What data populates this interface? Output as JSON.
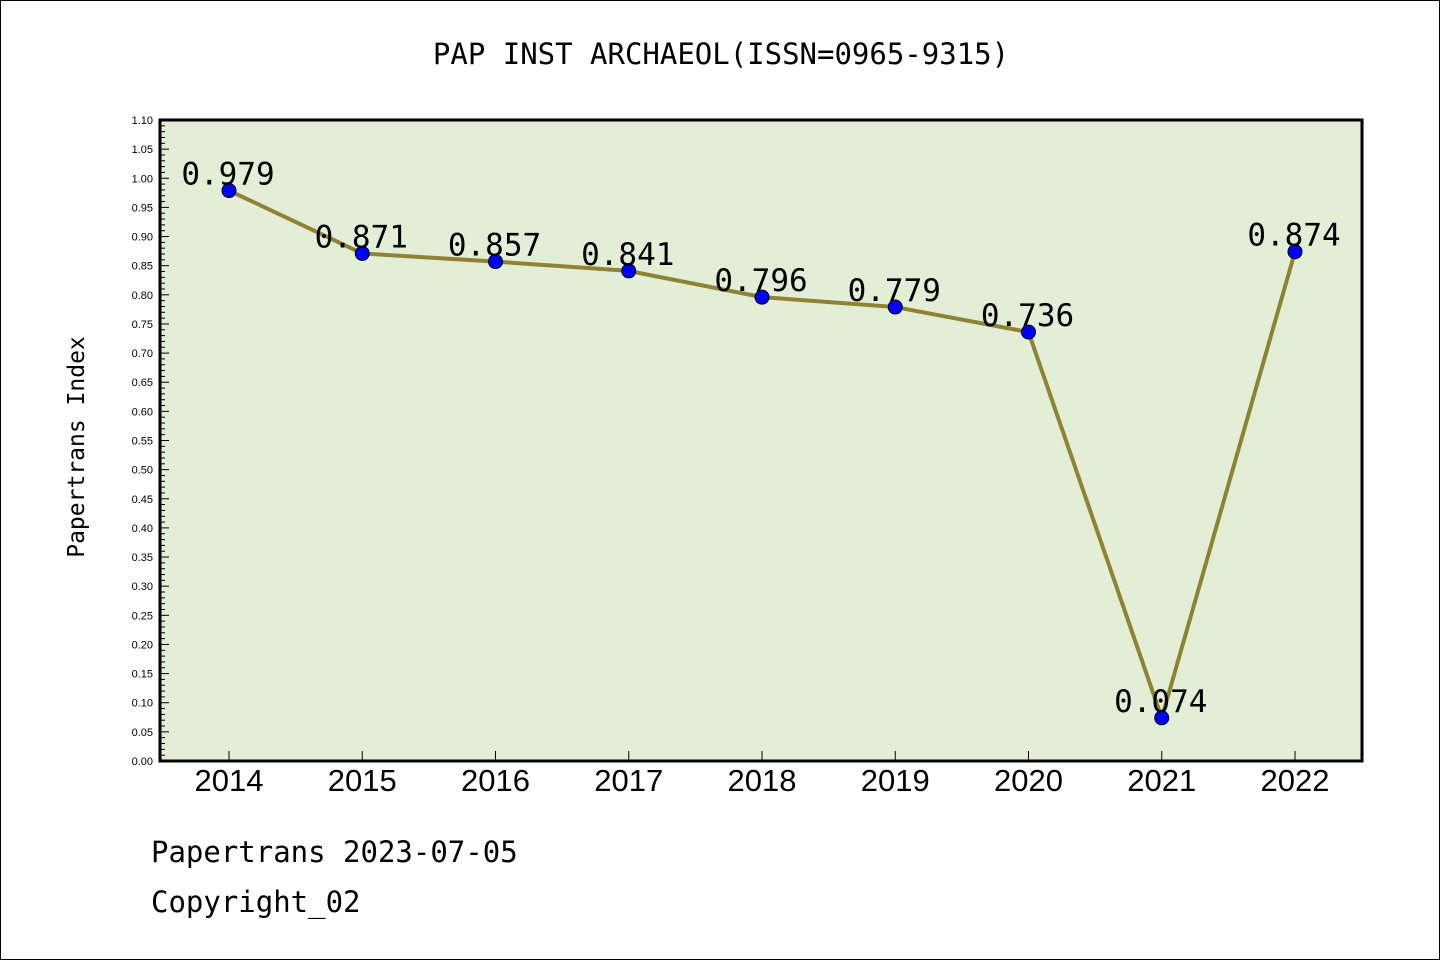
{
  "chart_data": {
    "type": "line",
    "title": "PAP INST ARCHAEOL(ISSN=0965-9315)",
    "ylabel": "Papertrans Index",
    "xlabel": "",
    "categories": [
      "2014",
      "2015",
      "2016",
      "2017",
      "2018",
      "2019",
      "2020",
      "2021",
      "2022"
    ],
    "values": [
      0.979,
      0.871,
      0.857,
      0.841,
      0.796,
      0.779,
      0.736,
      0.074,
      0.874
    ],
    "data_labels": [
      "0.979",
      "0.871",
      "0.857",
      "0.841",
      "0.796",
      "0.779",
      "0.736",
      "0.074",
      "0.874"
    ],
    "ylim": [
      0,
      1.1
    ],
    "y_tick_step": 0.05,
    "grid": false,
    "colors": {
      "plot_background": "#e2efd6",
      "line": "#8f8232",
      "marker": "#0000ff"
    }
  },
  "footer": {
    "line1": "Papertrans 2023-07-05",
    "line2": "Copyright_02"
  }
}
